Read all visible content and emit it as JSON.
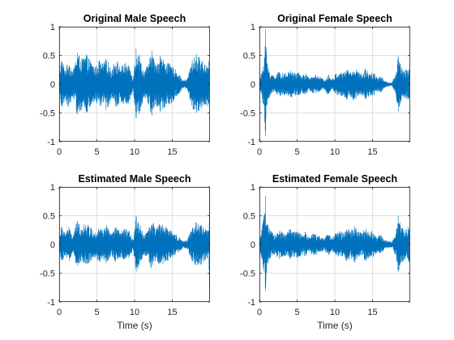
{
  "figure": {
    "background": "#ffffff",
    "line_color": "#0072bd",
    "axis_color": "#262626",
    "grid_color": "#dfdfdf"
  },
  "chart_data": [
    {
      "type": "line",
      "title": "Original Male Speech",
      "xlabel": "",
      "ylabel": "",
      "xlim": [
        0,
        20
      ],
      "ylim": [
        -1,
        1
      ],
      "xticks": [
        0,
        5,
        10,
        15
      ],
      "yticks": [
        -1,
        -0.5,
        0,
        0.5,
        1
      ],
      "xtick_labels": [
        "0",
        "5",
        "10",
        "15"
      ],
      "ytick_labels": [
        "-1",
        "-0.5",
        "0",
        "0.5",
        "1"
      ],
      "grid": true,
      "series": [
        {
          "envelope": [
            {
              "x": 0.0,
              "y": 0.18
            },
            {
              "x": 0.3,
              "y": 0.45
            },
            {
              "x": 0.8,
              "y": 0.28
            },
            {
              "x": 1.3,
              "y": 0.42
            },
            {
              "x": 1.8,
              "y": 0.22
            },
            {
              "x": 2.4,
              "y": 0.55
            },
            {
              "x": 3.0,
              "y": 0.45
            },
            {
              "x": 3.6,
              "y": 0.52
            },
            {
              "x": 4.2,
              "y": 0.4
            },
            {
              "x": 4.8,
              "y": 0.3
            },
            {
              "x": 5.3,
              "y": 0.42
            },
            {
              "x": 5.8,
              "y": 0.35
            },
            {
              "x": 6.3,
              "y": 0.48
            },
            {
              "x": 6.9,
              "y": 0.25
            },
            {
              "x": 7.5,
              "y": 0.45
            },
            {
              "x": 8.1,
              "y": 0.3
            },
            {
              "x": 8.7,
              "y": 0.38
            },
            {
              "x": 9.3,
              "y": 0.32
            },
            {
              "x": 9.8,
              "y": 0.12
            },
            {
              "x": 10.2,
              "y": 0.62
            },
            {
              "x": 10.7,
              "y": 0.5
            },
            {
              "x": 11.2,
              "y": 0.22
            },
            {
              "x": 11.8,
              "y": 0.35
            },
            {
              "x": 12.3,
              "y": 0.58
            },
            {
              "x": 12.8,
              "y": 0.35
            },
            {
              "x": 13.4,
              "y": 0.5
            },
            {
              "x": 14.0,
              "y": 0.42
            },
            {
              "x": 14.6,
              "y": 0.36
            },
            {
              "x": 15.2,
              "y": 0.3
            },
            {
              "x": 15.8,
              "y": 0.2
            },
            {
              "x": 16.4,
              "y": 0.07
            },
            {
              "x": 17.0,
              "y": 0.1
            },
            {
              "x": 17.6,
              "y": 0.42
            },
            {
              "x": 18.2,
              "y": 0.52
            },
            {
              "x": 18.8,
              "y": 0.45
            },
            {
              "x": 19.4,
              "y": 0.35
            },
            {
              "x": 19.9,
              "y": 0.45
            }
          ]
        }
      ]
    },
    {
      "type": "line",
      "title": "Original Female Speech",
      "xlabel": "",
      "ylabel": "",
      "xlim": [
        0,
        20
      ],
      "ylim": [
        -1,
        1
      ],
      "xticks": [
        0,
        5,
        10,
        15
      ],
      "yticks": [
        -1,
        -0.5,
        0,
        0.5,
        1
      ],
      "xtick_labels": [
        "0",
        "5",
        "10",
        "15"
      ],
      "ytick_labels": [
        "-1",
        "-0.5",
        "0",
        "0.5",
        "1"
      ],
      "grid": true,
      "series": [
        {
          "envelope": [
            {
              "x": 0.0,
              "y": 0.1
            },
            {
              "x": 0.3,
              "y": 0.2
            },
            {
              "x": 0.6,
              "y": 0.45
            },
            {
              "x": 0.8,
              "y": 0.95
            },
            {
              "x": 1.0,
              "y": 0.4
            },
            {
              "x": 1.4,
              "y": 0.2
            },
            {
              "x": 2.0,
              "y": 0.15
            },
            {
              "x": 2.6,
              "y": 0.22
            },
            {
              "x": 3.1,
              "y": 0.2
            },
            {
              "x": 3.6,
              "y": 0.18
            },
            {
              "x": 4.1,
              "y": 0.25
            },
            {
              "x": 4.6,
              "y": 0.2
            },
            {
              "x": 5.1,
              "y": 0.22
            },
            {
              "x": 5.6,
              "y": 0.15
            },
            {
              "x": 6.1,
              "y": 0.2
            },
            {
              "x": 6.6,
              "y": 0.1
            },
            {
              "x": 7.1,
              "y": 0.18
            },
            {
              "x": 7.6,
              "y": 0.15
            },
            {
              "x": 8.1,
              "y": 0.12
            },
            {
              "x": 8.6,
              "y": 0.08
            },
            {
              "x": 9.1,
              "y": 0.2
            },
            {
              "x": 9.6,
              "y": 0.08
            },
            {
              "x": 10.1,
              "y": 0.18
            },
            {
              "x": 10.6,
              "y": 0.22
            },
            {
              "x": 11.1,
              "y": 0.2
            },
            {
              "x": 11.6,
              "y": 0.28
            },
            {
              "x": 12.1,
              "y": 0.22
            },
            {
              "x": 12.6,
              "y": 0.3
            },
            {
              "x": 13.1,
              "y": 0.22
            },
            {
              "x": 13.6,
              "y": 0.18
            },
            {
              "x": 14.1,
              "y": 0.28
            },
            {
              "x": 14.6,
              "y": 0.2
            },
            {
              "x": 15.1,
              "y": 0.22
            },
            {
              "x": 15.6,
              "y": 0.12
            },
            {
              "x": 16.1,
              "y": 0.15
            },
            {
              "x": 16.6,
              "y": 0.06
            },
            {
              "x": 17.1,
              "y": 0.04
            },
            {
              "x": 17.6,
              "y": 0.03
            },
            {
              "x": 18.1,
              "y": 0.2
            },
            {
              "x": 18.4,
              "y": 0.5
            },
            {
              "x": 18.8,
              "y": 0.3
            },
            {
              "x": 19.3,
              "y": 0.25
            },
            {
              "x": 19.9,
              "y": 0.3
            }
          ]
        }
      ]
    },
    {
      "type": "line",
      "title": "Estimated Male Speech",
      "xlabel": "Time (s)",
      "ylabel": "",
      "xlim": [
        0,
        20
      ],
      "ylim": [
        -1,
        1
      ],
      "xticks": [
        0,
        5,
        10,
        15
      ],
      "yticks": [
        -1,
        -0.5,
        0,
        0.5,
        1
      ],
      "xtick_labels": [
        "0",
        "5",
        "10",
        "15"
      ],
      "ytick_labels": [
        "-1",
        "-0.5",
        "0",
        "0.5",
        "1"
      ],
      "grid": true,
      "series": [
        {
          "envelope": [
            {
              "x": 0.0,
              "y": 0.12
            },
            {
              "x": 0.3,
              "y": 0.32
            },
            {
              "x": 0.8,
              "y": 0.22
            },
            {
              "x": 1.3,
              "y": 0.3
            },
            {
              "x": 1.8,
              "y": 0.15
            },
            {
              "x": 2.4,
              "y": 0.42
            },
            {
              "x": 3.0,
              "y": 0.32
            },
            {
              "x": 3.6,
              "y": 0.38
            },
            {
              "x": 4.2,
              "y": 0.3
            },
            {
              "x": 4.8,
              "y": 0.22
            },
            {
              "x": 5.3,
              "y": 0.32
            },
            {
              "x": 5.8,
              "y": 0.25
            },
            {
              "x": 6.3,
              "y": 0.35
            },
            {
              "x": 6.9,
              "y": 0.18
            },
            {
              "x": 7.5,
              "y": 0.32
            },
            {
              "x": 8.1,
              "y": 0.22
            },
            {
              "x": 8.7,
              "y": 0.28
            },
            {
              "x": 9.3,
              "y": 0.24
            },
            {
              "x": 9.8,
              "y": 0.1
            },
            {
              "x": 10.2,
              "y": 0.5
            },
            {
              "x": 10.7,
              "y": 0.38
            },
            {
              "x": 11.2,
              "y": 0.18
            },
            {
              "x": 11.8,
              "y": 0.26
            },
            {
              "x": 12.3,
              "y": 0.46
            },
            {
              "x": 12.8,
              "y": 0.27
            },
            {
              "x": 13.4,
              "y": 0.38
            },
            {
              "x": 14.0,
              "y": 0.32
            },
            {
              "x": 14.6,
              "y": 0.27
            },
            {
              "x": 15.2,
              "y": 0.22
            },
            {
              "x": 15.8,
              "y": 0.15
            },
            {
              "x": 16.4,
              "y": 0.06
            },
            {
              "x": 17.0,
              "y": 0.08
            },
            {
              "x": 17.6,
              "y": 0.3
            },
            {
              "x": 18.2,
              "y": 0.4
            },
            {
              "x": 18.8,
              "y": 0.35
            },
            {
              "x": 19.4,
              "y": 0.28
            },
            {
              "x": 19.85,
              "y": 0.25
            },
            {
              "x": 19.95,
              "y": 1.0
            }
          ]
        }
      ]
    },
    {
      "type": "line",
      "title": "Estimated Female Speech",
      "xlabel": "Time (s)",
      "ylabel": "",
      "xlim": [
        0,
        20
      ],
      "ylim": [
        -1,
        1
      ],
      "xticks": [
        0,
        5,
        10,
        15
      ],
      "yticks": [
        -1,
        -0.5,
        0,
        0.5,
        1
      ],
      "xtick_labels": [
        "0",
        "5",
        "10",
        "15"
      ],
      "ytick_labels": [
        "-1",
        "-0.5",
        "0",
        "0.5",
        "1"
      ],
      "grid": true,
      "series": [
        {
          "envelope": [
            {
              "x": 0.0,
              "y": 0.1
            },
            {
              "x": 0.3,
              "y": 0.25
            },
            {
              "x": 0.6,
              "y": 0.5
            },
            {
              "x": 0.8,
              "y": 0.85
            },
            {
              "x": 1.0,
              "y": 0.4
            },
            {
              "x": 1.4,
              "y": 0.25
            },
            {
              "x": 2.0,
              "y": 0.18
            },
            {
              "x": 2.6,
              "y": 0.25
            },
            {
              "x": 3.1,
              "y": 0.22
            },
            {
              "x": 3.6,
              "y": 0.2
            },
            {
              "x": 4.1,
              "y": 0.28
            },
            {
              "x": 4.6,
              "y": 0.22
            },
            {
              "x": 5.1,
              "y": 0.25
            },
            {
              "x": 5.6,
              "y": 0.18
            },
            {
              "x": 6.1,
              "y": 0.22
            },
            {
              "x": 6.6,
              "y": 0.12
            },
            {
              "x": 7.1,
              "y": 0.2
            },
            {
              "x": 7.6,
              "y": 0.18
            },
            {
              "x": 8.1,
              "y": 0.14
            },
            {
              "x": 8.6,
              "y": 0.1
            },
            {
              "x": 9.1,
              "y": 0.22
            },
            {
              "x": 9.6,
              "y": 0.1
            },
            {
              "x": 10.1,
              "y": 0.2
            },
            {
              "x": 10.6,
              "y": 0.24
            },
            {
              "x": 11.1,
              "y": 0.22
            },
            {
              "x": 11.6,
              "y": 0.3
            },
            {
              "x": 12.1,
              "y": 0.24
            },
            {
              "x": 12.6,
              "y": 0.32
            },
            {
              "x": 13.1,
              "y": 0.24
            },
            {
              "x": 13.6,
              "y": 0.2
            },
            {
              "x": 14.1,
              "y": 0.3
            },
            {
              "x": 14.6,
              "y": 0.22
            },
            {
              "x": 15.1,
              "y": 0.24
            },
            {
              "x": 15.6,
              "y": 0.14
            },
            {
              "x": 16.1,
              "y": 0.17
            },
            {
              "x": 16.6,
              "y": 0.08
            },
            {
              "x": 17.1,
              "y": 0.06
            },
            {
              "x": 17.6,
              "y": 0.05
            },
            {
              "x": 18.1,
              "y": 0.22
            },
            {
              "x": 18.4,
              "y": 0.5
            },
            {
              "x": 18.8,
              "y": 0.32
            },
            {
              "x": 19.3,
              "y": 0.27
            },
            {
              "x": 19.9,
              "y": 0.32
            }
          ]
        }
      ]
    }
  ]
}
